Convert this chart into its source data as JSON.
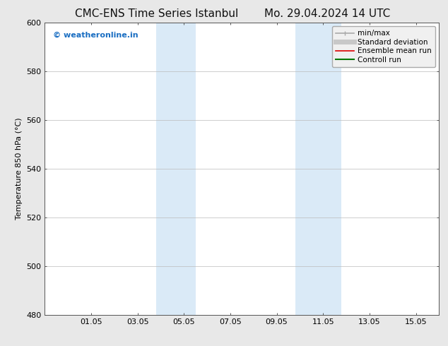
{
  "title_left": "CMC-ENS Time Series Istanbul",
  "title_right": "Mo. 29.04.2024 14 UTC",
  "ylabel": "Temperature 850 hPa (°C)",
  "ylim": [
    480,
    600
  ],
  "yticks": [
    480,
    500,
    520,
    540,
    560,
    580,
    600
  ],
  "xtick_labels": [
    "01.05",
    "03.05",
    "05.05",
    "07.05",
    "09.05",
    "11.05",
    "13.05",
    "15.05"
  ],
  "xtick_positions": [
    2,
    4,
    6,
    8,
    10,
    12,
    14,
    16
  ],
  "xlim": [
    0,
    17
  ],
  "shaded_regions": [
    {
      "x_start": 4.8,
      "x_end": 6.5,
      "color": "#daeaf7"
    },
    {
      "x_start": 10.8,
      "x_end": 12.8,
      "color": "#daeaf7"
    }
  ],
  "watermark_text": "© weatheronline.in",
  "watermark_color": "#1a6ec2",
  "background_color": "#e8e8e8",
  "plot_bg_color": "#ffffff",
  "legend_items": [
    {
      "label": "min/max",
      "color": "#aaaaaa",
      "linestyle": "-",
      "linewidth": 1.2
    },
    {
      "label": "Standard deviation",
      "color": "#c8c8c8",
      "linestyle": "-",
      "linewidth": 5
    },
    {
      "label": "Ensemble mean run",
      "color": "#dd0000",
      "linestyle": "-",
      "linewidth": 1.2
    },
    {
      "label": "Controll run",
      "color": "#007700",
      "linestyle": "-",
      "linewidth": 1.5
    }
  ],
  "title_fontsize": 11,
  "ylabel_fontsize": 8,
  "tick_fontsize": 8,
  "legend_fontsize": 7.5,
  "watermark_fontsize": 8
}
